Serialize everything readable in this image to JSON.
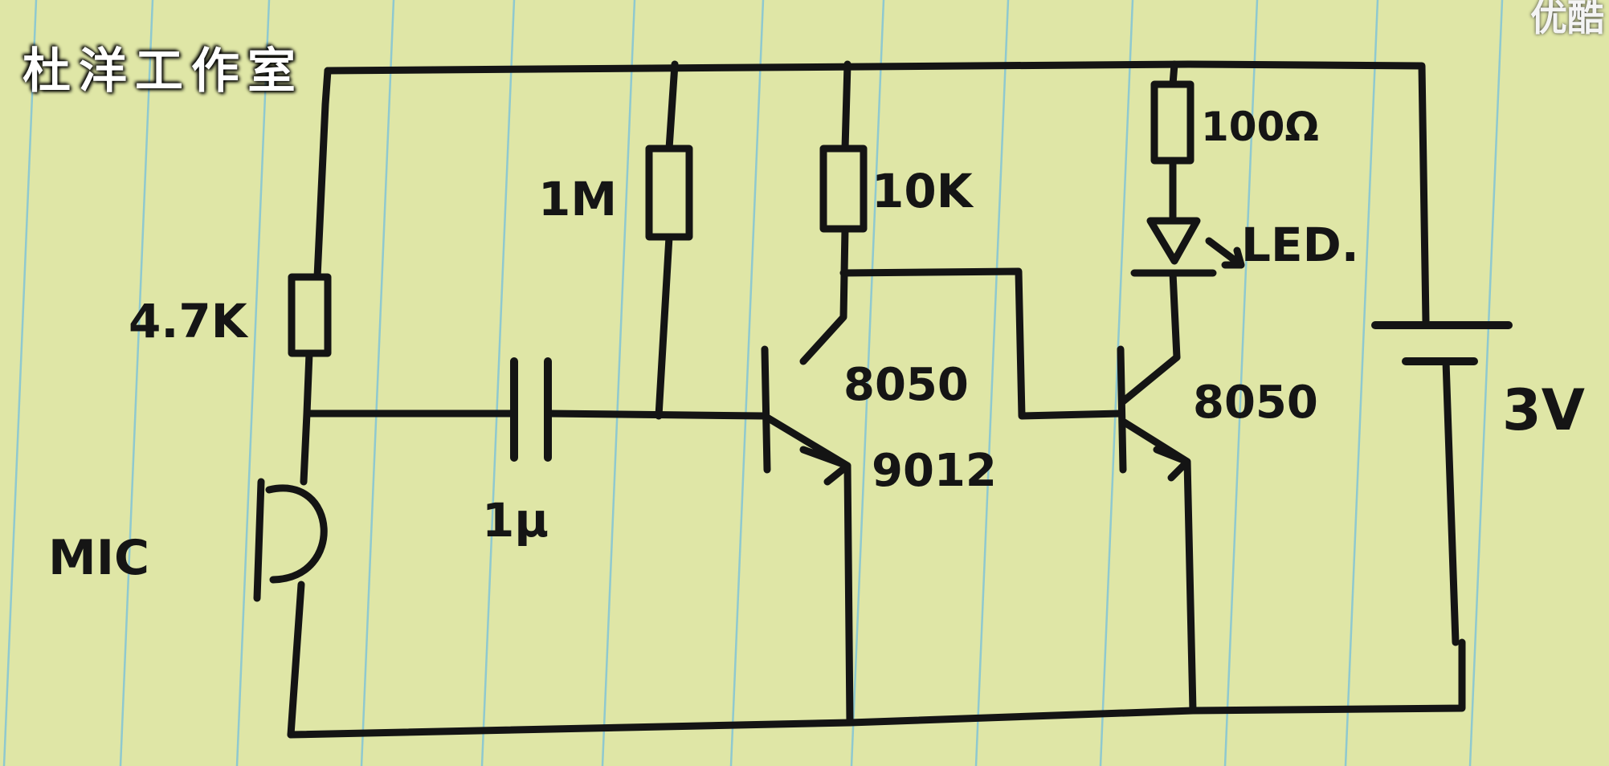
{
  "watermark": "杜洋工作室",
  "corner_logo": "优酷",
  "labels": {
    "r_mic": "4.7K",
    "r_bias": "1M",
    "r_collector": "10K",
    "r_led": "100Ω",
    "cap": "1μ",
    "mic": "MIC",
    "led": "LED.",
    "q1_model": "8050",
    "q1_alt": "9012",
    "q2_model": "8050",
    "battery": "3V"
  },
  "colors": {
    "paper": "#dfe6a6",
    "ink": "#141414",
    "rule_lines": "#8fc9cf"
  }
}
